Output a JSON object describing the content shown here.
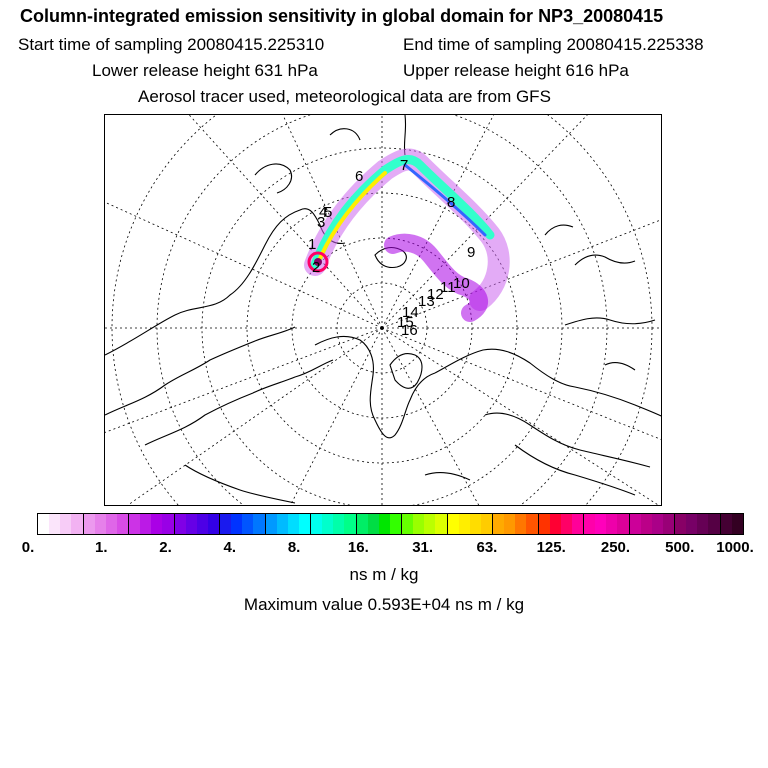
{
  "title": "Column-integrated emission sensitivity in global domain for NP3_20080415",
  "start_label": "Start time of sampling 20080415.225310",
  "end_label": "End time of sampling 20080415.225338",
  "lower_label": "Lower release height  631 hPa",
  "upper_label": "Upper release height  616 hPa",
  "tracer_label": "Aerosol tracer used, meteorological data are from GFS",
  "map_labels": [
    "1",
    "2",
    "3",
    "4",
    "5",
    "6",
    "7",
    "8",
    "9",
    "10",
    "11",
    "12",
    "13",
    "14",
    "15",
    "16"
  ],
  "colorbar": {
    "ticks": [
      "0.",
      "1.",
      "2.",
      "4.",
      "8.",
      "16.",
      "31.",
      "63.",
      "125.",
      "250.",
      "500.",
      "1000."
    ],
    "colors": [
      "#ffffff",
      "#fbe5fb",
      "#f7ccf7",
      "#f2b2f2",
      "#ec99ee",
      "#e680ea",
      "#df66e8",
      "#d84ce6",
      "#cc33e6",
      "#bb1ae6",
      "#aa00e6",
      "#9900e6",
      "#8000e6",
      "#6600e6",
      "#4d00e6",
      "#3300e6",
      "#1a1aee",
      "#0033ff",
      "#0055ff",
      "#0077ff",
      "#0099ff",
      "#00bbff",
      "#00ddff",
      "#00ffff",
      "#00ffee",
      "#00ffcc",
      "#00ffaa",
      "#00ff88",
      "#00ee66",
      "#00dd44",
      "#00e600",
      "#33ff00",
      "#66ff00",
      "#99ff00",
      "#bbff00",
      "#ddff00",
      "#ffff00",
      "#ffee00",
      "#ffdd00",
      "#ffcc00",
      "#ffaa00",
      "#ff9900",
      "#ff7700",
      "#ff5500",
      "#ff3300",
      "#ff0033",
      "#ff0066",
      "#ff0099",
      "#ff00aa",
      "#ff00bb",
      "#ee00aa",
      "#dd0099",
      "#cc0099",
      "#bb0088",
      "#aa0088",
      "#990077",
      "#880066",
      "#770066",
      "#660055",
      "#550044",
      "#440033",
      "#330022"
    ]
  },
  "unit_label": "ns m / kg",
  "max_label": "Maximum value  0.593E+04 ns m / kg"
}
